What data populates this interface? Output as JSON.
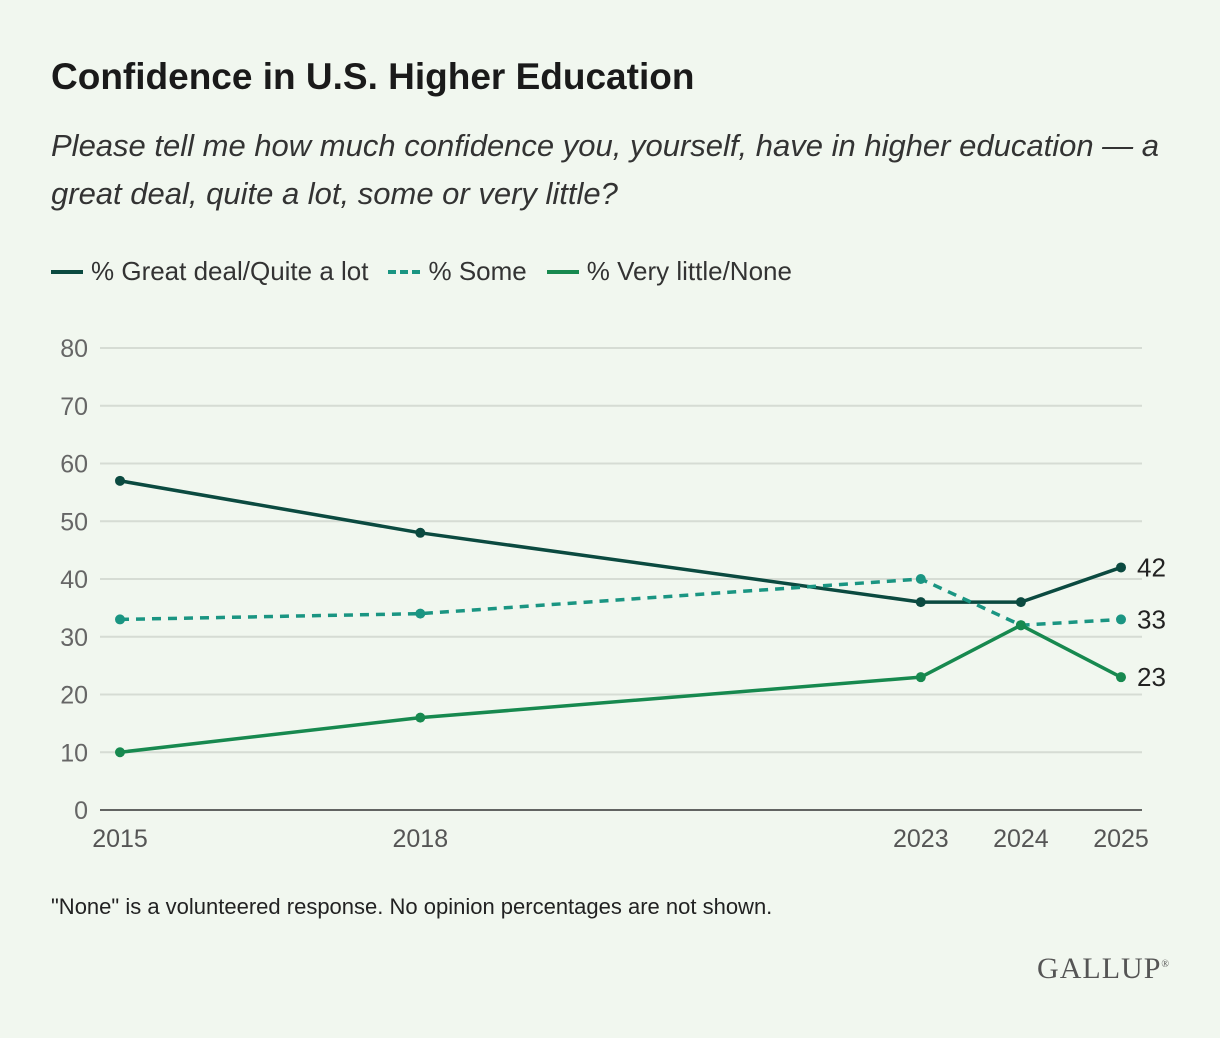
{
  "chart_data": {
    "type": "line",
    "title": "Confidence in U.S. Higher Education",
    "subtitle": "Please tell me how much confidence you, yourself, have in higher education — a great deal, quite a lot, some or very little?",
    "x": [
      2015,
      2018,
      2023,
      2024,
      2025
    ],
    "x_tick_labels": [
      "2015",
      "2018",
      "2023",
      "2024",
      "2025"
    ],
    "y_ticks": [
      0,
      10,
      20,
      30,
      40,
      50,
      60,
      70,
      80
    ],
    "ylim": [
      0,
      80
    ],
    "grid": true,
    "legend_placement": "top-left",
    "series": [
      {
        "name": "% Great deal/Quite a lot",
        "values": [
          57,
          48,
          36,
          36,
          42
        ],
        "color": "#0b4a40",
        "dashed": false,
        "end_label": "42"
      },
      {
        "name": "% Some",
        "values": [
          33,
          34,
          40,
          32,
          33
        ],
        "color": "#1a9582",
        "dashed": true,
        "end_label": "33"
      },
      {
        "name": "% Very little/None",
        "values": [
          10,
          16,
          23,
          32,
          23
        ],
        "color": "#17894f",
        "dashed": false,
        "end_label": "23"
      }
    ],
    "note": "\"None\" is a volunteered response. No opinion percentages are not shown.",
    "source_logo": "GALLUP"
  }
}
